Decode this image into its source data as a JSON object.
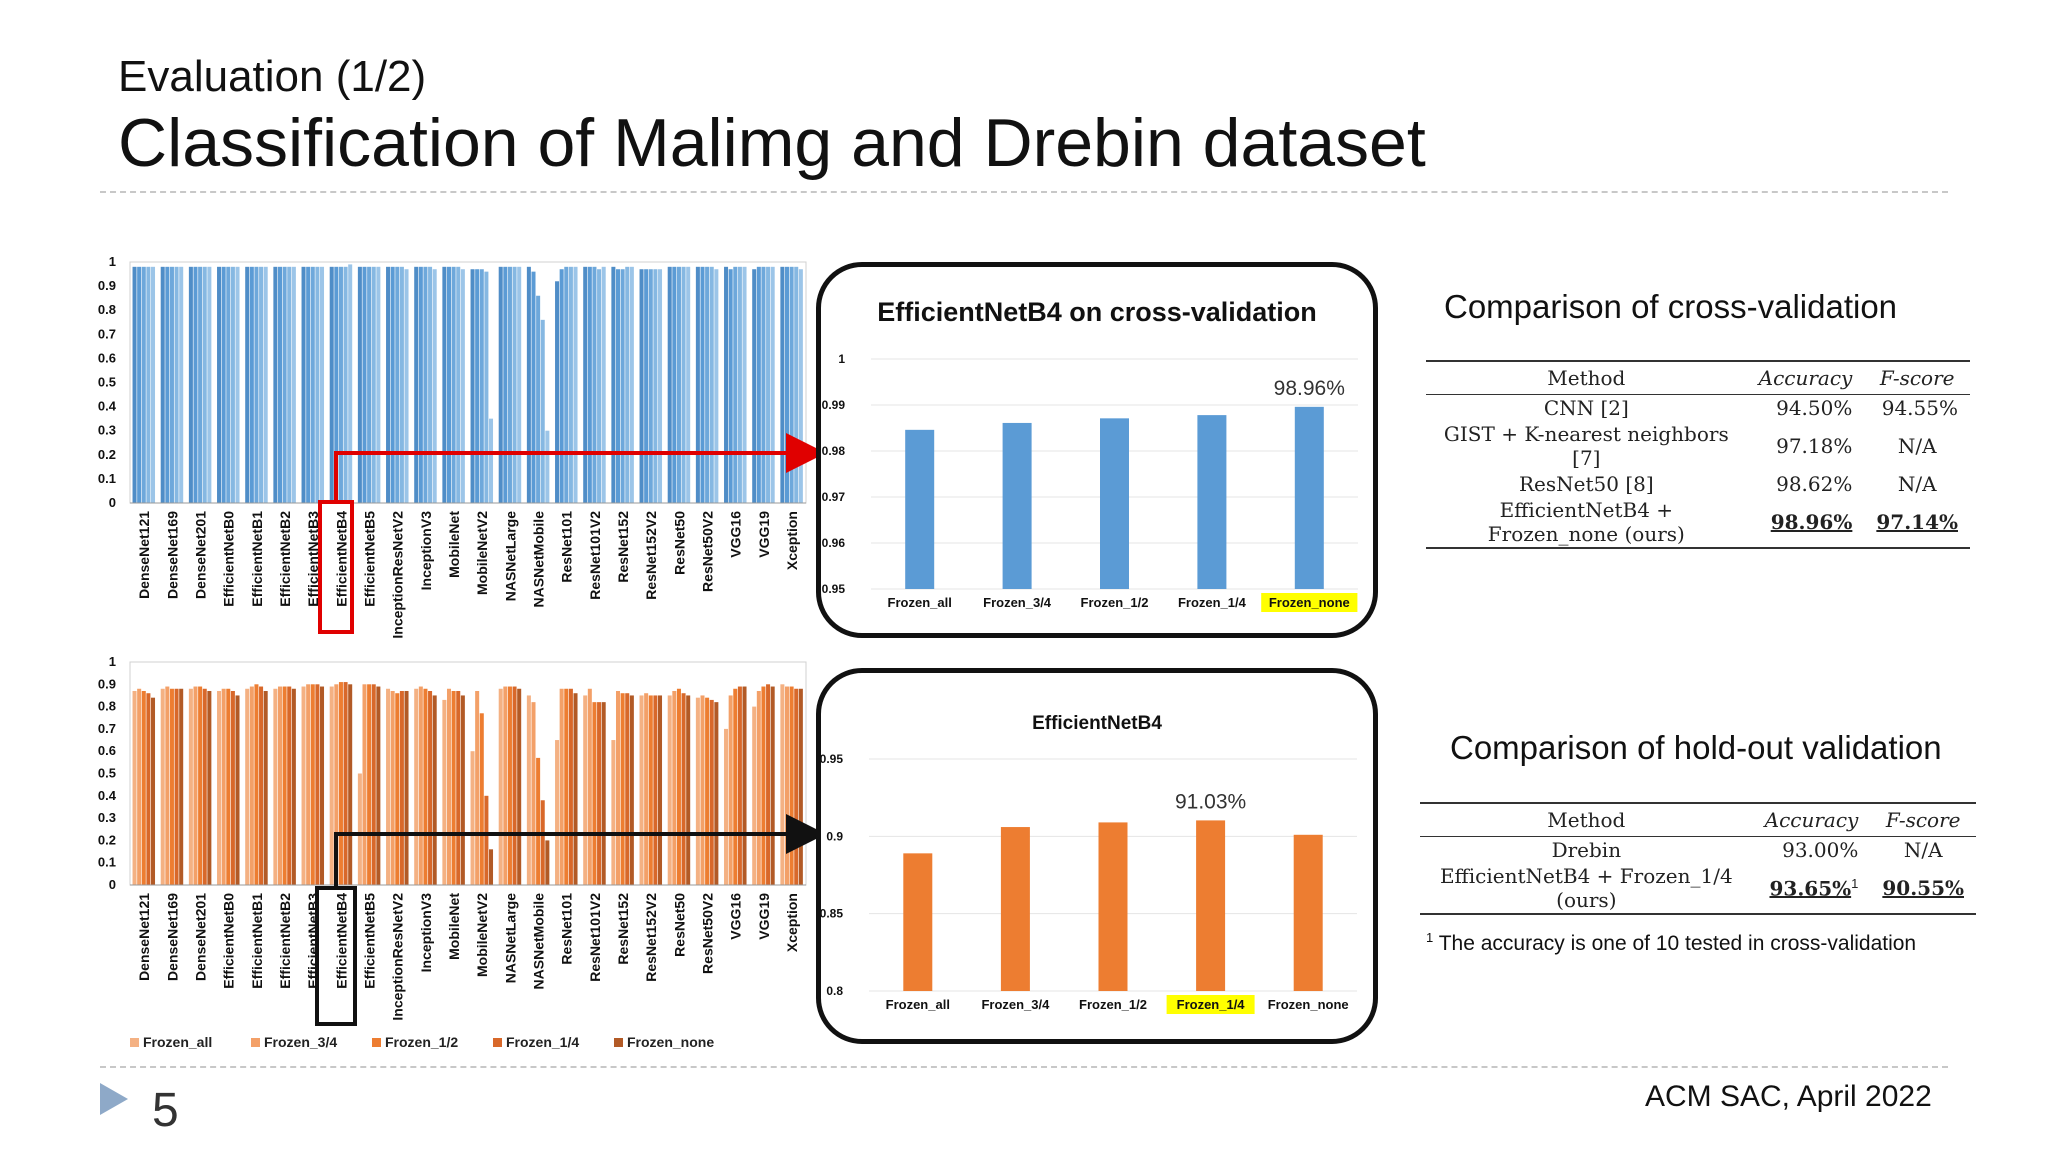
{
  "slide": {
    "subtitle": "Evaluation (1/2)",
    "title": "Classification of  Malimg and Drebin dataset",
    "page_number": "5",
    "footer": "ACM SAC, April 2022",
    "colors": {
      "blue": "#5B9BD5",
      "orange": "#ED7D31",
      "highlight": "#FFFF00",
      "red_box": "#E00000"
    }
  },
  "cross_validation_comparison": {
    "title": "Comparison of cross-validation",
    "headers": [
      "Method",
      "Accuracy",
      "F-score"
    ],
    "rows": [
      [
        "CNN [2]",
        "94.50%",
        "94.55%"
      ],
      [
        "GIST + K-nearest neighbors [7]",
        "97.18%",
        "N/A"
      ],
      [
        "ResNet50 [8]",
        "98.62%",
        "N/A"
      ],
      [
        "EfficientNetB4 + Frozen_none (ours)",
        "98.96%",
        "97.14%"
      ]
    ]
  },
  "holdout_comparison": {
    "title": "Comparison of hold-out validation",
    "headers": [
      "Method",
      "Accuracy",
      "F-score"
    ],
    "rows": [
      [
        "Drebin",
        "93.00%",
        "N/A"
      ],
      [
        "EfficientNetB4 + Frozen_1/4 (ours)",
        "93.65%",
        "90.55%"
      ]
    ],
    "superscript": "1",
    "footnote_marker": "1",
    "footnote": "The accuracy is one of 10 tested in cross-validation"
  },
  "chart_data": [
    {
      "id": "malimg_all_models",
      "type": "bar",
      "categories": [
        "DenseNet121",
        "DenseNet169",
        "DenseNet201",
        "EfficientNetB0",
        "EfficientNetB1",
        "EfficientNetB2",
        "EfficientNetB3",
        "EfficientNetB4",
        "EfficientNetB5",
        "InceptionResNetV2",
        "InceptionV3",
        "MobileNet",
        "MobileNetV2",
        "NASNetLarge",
        "NASNetMobile",
        "ResNet101",
        "ResNet101V2",
        "ResNet152",
        "ResNet152V2",
        "ResNet50",
        "ResNet50V2",
        "VGG16",
        "VGG19",
        "Xception"
      ],
      "series": [
        {
          "values": [
            0.98,
            0.98,
            0.98,
            0.98,
            0.98,
            0.98,
            0.98,
            0.98,
            0.98,
            0.98,
            0.98,
            0.98,
            0.97,
            0.98,
            0.98,
            0.92,
            0.98,
            0.98,
            0.97,
            0.98,
            0.98,
            0.98,
            0.97,
            0.98
          ]
        },
        {
          "values": [
            0.98,
            0.98,
            0.98,
            0.98,
            0.98,
            0.98,
            0.98,
            0.98,
            0.98,
            0.98,
            0.98,
            0.98,
            0.97,
            0.98,
            0.96,
            0.97,
            0.98,
            0.97,
            0.97,
            0.98,
            0.98,
            0.97,
            0.98,
            0.98
          ]
        },
        {
          "values": [
            0.98,
            0.98,
            0.98,
            0.98,
            0.98,
            0.98,
            0.98,
            0.98,
            0.98,
            0.98,
            0.98,
            0.98,
            0.97,
            0.98,
            0.86,
            0.98,
            0.98,
            0.97,
            0.97,
            0.98,
            0.98,
            0.98,
            0.98,
            0.98
          ]
        },
        {
          "values": [
            0.98,
            0.98,
            0.98,
            0.98,
            0.98,
            0.98,
            0.98,
            0.98,
            0.98,
            0.98,
            0.98,
            0.98,
            0.96,
            0.98,
            0.76,
            0.98,
            0.97,
            0.98,
            0.97,
            0.98,
            0.98,
            0.98,
            0.98,
            0.98
          ]
        },
        {
          "values": [
            0.98,
            0.98,
            0.98,
            0.98,
            0.98,
            0.98,
            0.98,
            0.99,
            0.98,
            0.97,
            0.97,
            0.97,
            0.35,
            0.98,
            0.3,
            0.98,
            0.98,
            0.98,
            0.97,
            0.98,
            0.97,
            0.98,
            0.98,
            0.97
          ]
        }
      ],
      "ylim": [
        0,
        1
      ],
      "yticks": [
        "0",
        "0.1",
        "0.2",
        "0.3",
        "0.4",
        "0.5",
        "0.6",
        "0.7",
        "0.8",
        "0.9",
        "1"
      ],
      "highlight": "EfficientNetB4"
    },
    {
      "id": "drebin_all_models",
      "type": "bar",
      "categories": [
        "DenseNet121",
        "DenseNet169",
        "DenseNet201",
        "EfficientNetB0",
        "EfficientNetB1",
        "EfficientNetB2",
        "EfficientNetB3",
        "EfficientNetB4",
        "EfficientNetB5",
        "InceptionResNetV2",
        "InceptionV3",
        "MobileNet",
        "MobileNetV2",
        "NASNetLarge",
        "NASNetMobile",
        "ResNet101",
        "ResNet101V2",
        "ResNet152",
        "ResNet152V2",
        "ResNet50",
        "ResNet50V2",
        "VGG16",
        "VGG19",
        "Xception"
      ],
      "series": [
        {
          "name": "Frozen_all",
          "values": [
            0.87,
            0.88,
            0.88,
            0.87,
            0.88,
            0.88,
            0.89,
            0.89,
            0.5,
            0.88,
            0.88,
            0.83,
            0.6,
            0.88,
            0.85,
            0.65,
            0.85,
            0.65,
            0.85,
            0.85,
            0.84,
            0.7,
            0.8,
            0.9
          ]
        },
        {
          "name": "Frozen_3/4",
          "values": [
            0.88,
            0.89,
            0.89,
            0.88,
            0.89,
            0.89,
            0.9,
            0.9,
            0.9,
            0.87,
            0.89,
            0.88,
            0.87,
            0.89,
            0.82,
            0.88,
            0.88,
            0.87,
            0.86,
            0.87,
            0.85,
            0.85,
            0.87,
            0.89
          ]
        },
        {
          "name": "Frozen_1/2",
          "values": [
            0.87,
            0.88,
            0.89,
            0.88,
            0.9,
            0.89,
            0.9,
            0.91,
            0.9,
            0.86,
            0.88,
            0.87,
            0.77,
            0.89,
            0.57,
            0.88,
            0.82,
            0.86,
            0.85,
            0.88,
            0.84,
            0.88,
            0.89,
            0.89
          ]
        },
        {
          "name": "Frozen_1/4",
          "values": [
            0.86,
            0.88,
            0.88,
            0.87,
            0.89,
            0.89,
            0.9,
            0.91,
            0.9,
            0.87,
            0.87,
            0.87,
            0.4,
            0.89,
            0.38,
            0.88,
            0.82,
            0.86,
            0.85,
            0.86,
            0.83,
            0.89,
            0.9,
            0.88
          ]
        },
        {
          "name": "Frozen_none",
          "values": [
            0.84,
            0.88,
            0.87,
            0.85,
            0.87,
            0.88,
            0.89,
            0.9,
            0.89,
            0.87,
            0.85,
            0.85,
            0.16,
            0.88,
            0.2,
            0.86,
            0.82,
            0.85,
            0.85,
            0.85,
            0.82,
            0.89,
            0.89,
            0.88
          ]
        }
      ],
      "ylim": [
        0,
        1
      ],
      "yticks": [
        "0",
        "0.1",
        "0.2",
        "0.3",
        "0.4",
        "0.5",
        "0.6",
        "0.7",
        "0.8",
        "0.9",
        "1"
      ],
      "legend": [
        "Frozen_all",
        "Frozen_3/4",
        "Frozen_1/2",
        "Frozen_1/4",
        "Frozen_none"
      ],
      "legend_position": "bottom",
      "highlight": "EfficientNetB4"
    },
    {
      "id": "effb4_cross_validation",
      "type": "bar",
      "title": "EfficientNetB4 on cross-validation",
      "categories": [
        "Frozen_all",
        "Frozen_3/4",
        "Frozen_1/2",
        "Frozen_1/4",
        "Frozen_none"
      ],
      "values": [
        0.9846,
        0.9861,
        0.9871,
        0.9878,
        0.9896
      ],
      "ylim": [
        0.95,
        1
      ],
      "yticks": [
        "0.95",
        "0.96",
        "0.97",
        "0.98",
        "0.99",
        "1"
      ],
      "annotation": "98.96%",
      "highlight_category": "Frozen_none"
    },
    {
      "id": "effb4_holdout",
      "type": "bar",
      "title": "EfficientNetB4",
      "categories": [
        "Frozen_all",
        "Frozen_3/4",
        "Frozen_1/2",
        "Frozen_1/4",
        "Frozen_none"
      ],
      "values": [
        0.889,
        0.906,
        0.909,
        0.9103,
        0.901
      ],
      "ylim": [
        0.8,
        0.95
      ],
      "yticks": [
        "0.8",
        "0.85",
        "0.9",
        "0.95"
      ],
      "annotation": "91.03%",
      "highlight_category": "Frozen_1/4"
    }
  ]
}
